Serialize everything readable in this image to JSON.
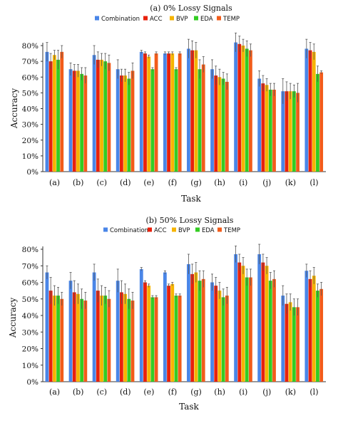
{
  "colors": {
    "Combination": "#4a86e8",
    "ACC": "#e8210c",
    "BVP": "#f6b400",
    "EDA": "#33cc22",
    "TEMP": "#f25c1a"
  },
  "chart_data": [
    {
      "type": "bar",
      "title": "(a) 0% Lossy Signals",
      "xlabel": "Task",
      "ylabel": "Accuracy",
      "ylim": [
        0,
        80
      ],
      "yticks": [
        "0%",
        "10%",
        "20%",
        "30%",
        "40%",
        "50%",
        "60%",
        "70%",
        "80%"
      ],
      "grid": false,
      "legend": "top",
      "categories": [
        "(a)",
        "(b)",
        "(c)",
        "(d)",
        "(e)",
        "(f)",
        "(g)",
        "(h)",
        "(i)",
        "(j)",
        "(k)",
        "(l)"
      ],
      "series": [
        {
          "name": "Combination",
          "values": [
            76,
            65,
            74,
            65,
            76,
            75,
            78,
            65,
            82,
            59,
            51,
            78
          ],
          "errors": [
            6,
            4,
            6,
            6,
            1,
            1,
            6,
            6,
            6,
            5,
            8,
            6
          ]
        },
        {
          "name": "ACC",
          "values": [
            70,
            64,
            71,
            61,
            75,
            75,
            77,
            61,
            81,
            56,
            51,
            77
          ],
          "errors": [
            5,
            4,
            5,
            4,
            1,
            1,
            6,
            6,
            5,
            5,
            6,
            5
          ]
        },
        {
          "name": "BVP",
          "values": [
            74,
            64,
            71,
            61,
            73,
            75,
            77,
            60,
            80,
            55,
            51,
            76
          ],
          "errors": [
            3,
            4,
            4,
            4,
            1,
            1,
            5,
            5,
            4,
            4,
            5,
            5
          ]
        },
        {
          "name": "EDA",
          "values": [
            71,
            62,
            70,
            59,
            65,
            65,
            65,
            59,
            78,
            52,
            51,
            62
          ],
          "errors": [
            6,
            4,
            5,
            4,
            1,
            1,
            6,
            4,
            5,
            4,
            4,
            5
          ]
        },
        {
          "name": "TEMP",
          "values": [
            76,
            61,
            69,
            64,
            75,
            75,
            68,
            57,
            77,
            52,
            50,
            63
          ],
          "errors": [
            4,
            5,
            5,
            5,
            1,
            1,
            5,
            5,
            4,
            4,
            6,
            1
          ]
        }
      ]
    },
    {
      "type": "bar",
      "title": "(b) 50% Lossy Signals",
      "xlabel": "Task",
      "ylabel": "Accuracy",
      "ylim": [
        0,
        80
      ],
      "yticks": [
        "0%",
        "10%",
        "20%",
        "30%",
        "40%",
        "50%",
        "60%",
        "70%",
        "80%"
      ],
      "grid": false,
      "legend": "top",
      "categories": [
        "(a)",
        "(b)",
        "(c)",
        "(d)",
        "(e)",
        "(f)",
        "(g)",
        "(h)",
        "(i)",
        "(j)",
        "(k)",
        "(l)"
      ],
      "series": [
        {
          "name": "Combination",
          "values": [
            66,
            61,
            66,
            61,
            68,
            66,
            71,
            60,
            77,
            77,
            52,
            67
          ],
          "errors": [
            4,
            5,
            5,
            7,
            1,
            1,
            6,
            5,
            5,
            6,
            6,
            4
          ]
        },
        {
          "name": "ACC",
          "values": [
            55,
            54,
            55,
            54,
            60,
            58,
            65,
            58,
            72,
            72,
            47,
            62
          ],
          "errors": [
            8,
            7,
            7,
            7,
            1,
            1,
            6,
            5,
            5,
            5,
            6,
            5
          ]
        },
        {
          "name": "BVP",
          "values": [
            52,
            53,
            52,
            53,
            58,
            59,
            66,
            55,
            70,
            70,
            48,
            64
          ],
          "errors": [
            6,
            6,
            6,
            6,
            1,
            1,
            6,
            5,
            5,
            5,
            5,
            5
          ]
        },
        {
          "name": "EDA",
          "values": [
            52,
            50,
            52,
            50,
            51,
            52,
            61,
            51,
            63,
            61,
            45,
            55
          ],
          "errors": [
            5,
            6,
            5,
            6,
            1,
            1,
            6,
            5,
            5,
            5,
            5,
            4
          ]
        },
        {
          "name": "TEMP",
          "values": [
            50,
            49,
            50,
            49,
            51,
            52,
            62,
            52,
            63,
            62,
            45,
            56
          ],
          "errors": [
            4,
            5,
            5,
            5,
            1,
            1,
            5,
            5,
            5,
            5,
            5,
            4
          ]
        }
      ]
    }
  ]
}
